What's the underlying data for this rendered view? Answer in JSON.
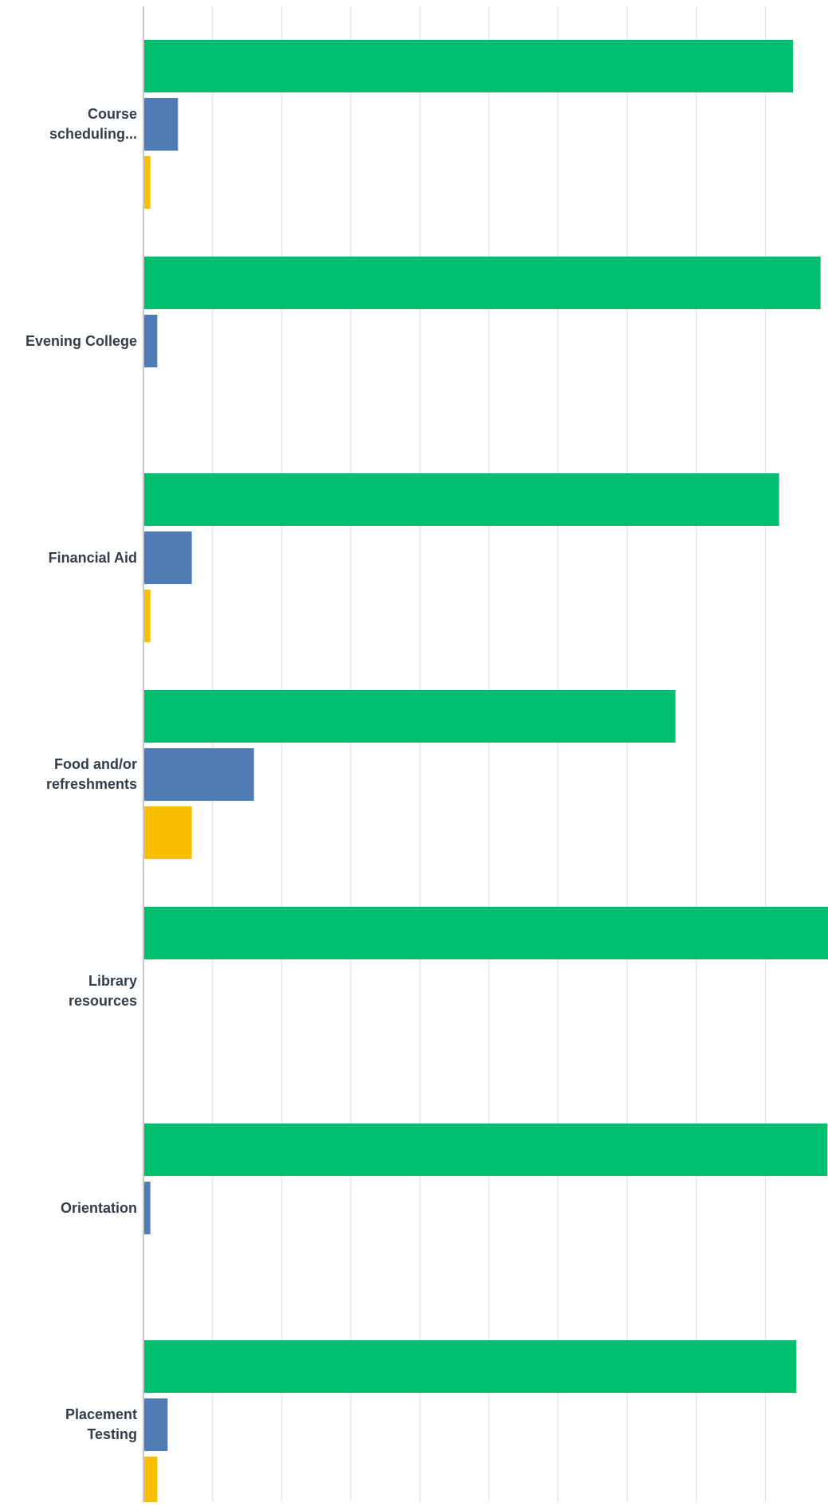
{
  "chart_data": {
    "type": "bar",
    "orientation": "horizontal",
    "title": "",
    "xlabel": "",
    "ylabel": "",
    "xlim": [
      0,
      100
    ],
    "grid": true,
    "categories": [
      "Course\nscheduling...",
      "Evening College",
      "Financial Aid",
      "Food and/or\nrefreshments",
      "Library\nresources",
      "Orientation",
      "Placement\nTesting"
    ],
    "series": [
      {
        "color": "#00bf6f",
        "values": [
          94,
          98,
          92,
          77,
          99.5,
          99,
          94.5
        ]
      },
      {
        "color": "#507cb6",
        "values": [
          5,
          2,
          7,
          16,
          0,
          1,
          3.5
        ]
      },
      {
        "color": "#f9be00",
        "values": [
          1,
          0,
          1,
          7,
          0,
          0,
          2
        ]
      }
    ]
  }
}
